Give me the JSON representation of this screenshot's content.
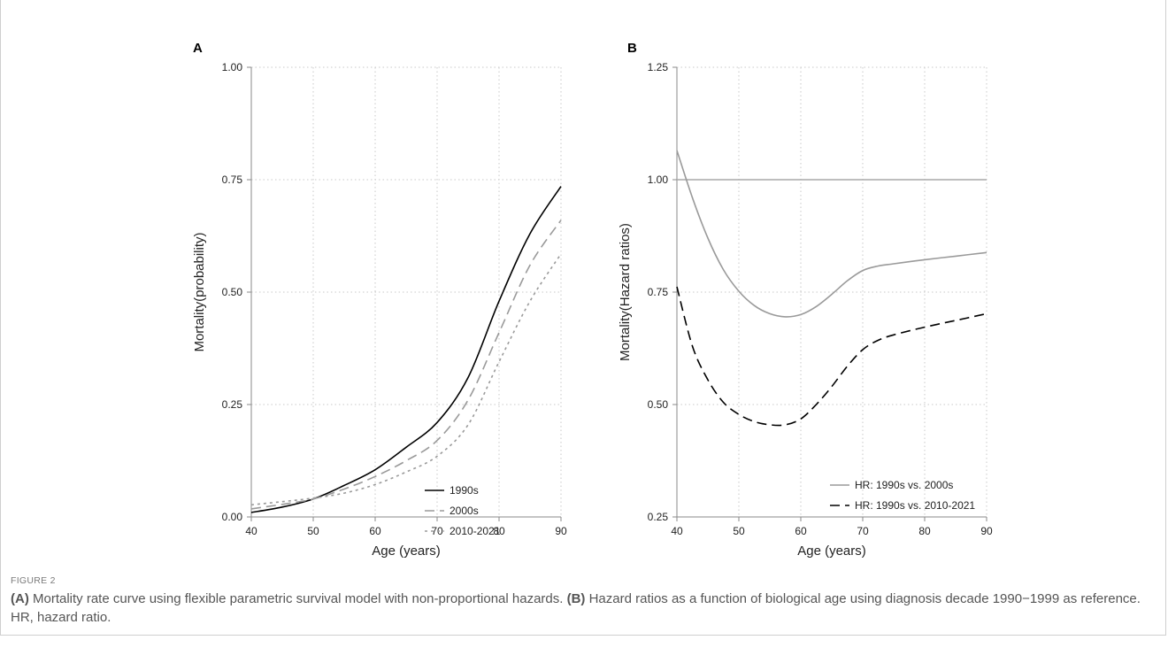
{
  "figure_label": "FIGURE 2",
  "caption": {
    "a_tag": "(A)",
    "a_text": " Mortality rate curve using flexible parametric survival model with non-proportional hazards. ",
    "b_tag": "(B)",
    "b_text": " Hazard ratios as a function of biological age using diagnosis decade 1990−1999 as reference. HR, hazard ratio."
  },
  "colors": {
    "black": "#000000",
    "gray": "#9a9a9a",
    "grid": "#c8c8c8"
  },
  "chart_data": [
    {
      "panel": "A",
      "type": "line",
      "xlabel": "Age (years)",
      "ylabel": "Mortality(probability)",
      "xlim": [
        40,
        90
      ],
      "ylim": [
        0,
        1
      ],
      "xticks": [
        40,
        50,
        60,
        70,
        80,
        90
      ],
      "yticks": [
        0,
        0.25,
        0.5,
        0.75,
        1.0
      ],
      "ytick_labels": [
        "0.00",
        "0.25",
        "0.50",
        "0.75",
        "1.00"
      ],
      "grid": "dotted",
      "legend_position": "bottom-right",
      "x": [
        40,
        45,
        50,
        55,
        60,
        65,
        70,
        75,
        80,
        85,
        90
      ],
      "series": [
        {
          "name": "1990s",
          "color": "#000000",
          "dash": "solid",
          "values": [
            0.01,
            0.022,
            0.04,
            0.07,
            0.105,
            0.155,
            0.21,
            0.31,
            0.48,
            0.63,
            0.735
          ]
        },
        {
          "name": "2000s",
          "color": "#9a9a9a",
          "dash": "long-dash",
          "values": [
            0.018,
            0.028,
            0.04,
            0.062,
            0.09,
            0.125,
            0.17,
            0.26,
            0.41,
            0.56,
            0.66
          ]
        },
        {
          "name": "2010-2021",
          "color": "#9a9a9a",
          "dash": "short-dash",
          "values": [
            0.027,
            0.034,
            0.042,
            0.053,
            0.072,
            0.1,
            0.135,
            0.205,
            0.345,
            0.48,
            0.585
          ]
        }
      ]
    },
    {
      "panel": "B",
      "type": "line",
      "xlabel": "Age (years)",
      "ylabel": "Mortality(Hazard ratios)",
      "xlim": [
        40,
        90
      ],
      "ylim": [
        0.25,
        1.25
      ],
      "xticks": [
        40,
        50,
        60,
        70,
        80,
        90
      ],
      "yticks": [
        0.25,
        0.5,
        0.75,
        1.0,
        1.25
      ],
      "ytick_labels": [
        "0.25",
        "0.50",
        "0.75",
        "1.00",
        "1.25"
      ],
      "grid": "dotted",
      "reference_line": 1.0,
      "legend_position": "bottom-right",
      "x": [
        40,
        42.5,
        45,
        47.5,
        50,
        52.5,
        55,
        57.5,
        60,
        62.5,
        65,
        67.5,
        70,
        72.5,
        75,
        80,
        85,
        90
      ],
      "series": [
        {
          "name": "HR: 1990s vs. 2000s",
          "color": "#9a9a9a",
          "dash": "solid",
          "values": [
            1.065,
            0.96,
            0.87,
            0.8,
            0.752,
            0.72,
            0.702,
            0.695,
            0.7,
            0.718,
            0.745,
            0.775,
            0.798,
            0.808,
            0.813,
            0.822,
            0.83,
            0.838
          ]
        },
        {
          "name": "HR: 1990s vs. 2010-2021",
          "color": "#000000",
          "dash": "long-dash",
          "values": [
            0.762,
            0.63,
            0.555,
            0.505,
            0.478,
            0.462,
            0.455,
            0.455,
            0.468,
            0.5,
            0.54,
            0.585,
            0.622,
            0.643,
            0.655,
            0.672,
            0.687,
            0.702
          ]
        }
      ]
    }
  ]
}
